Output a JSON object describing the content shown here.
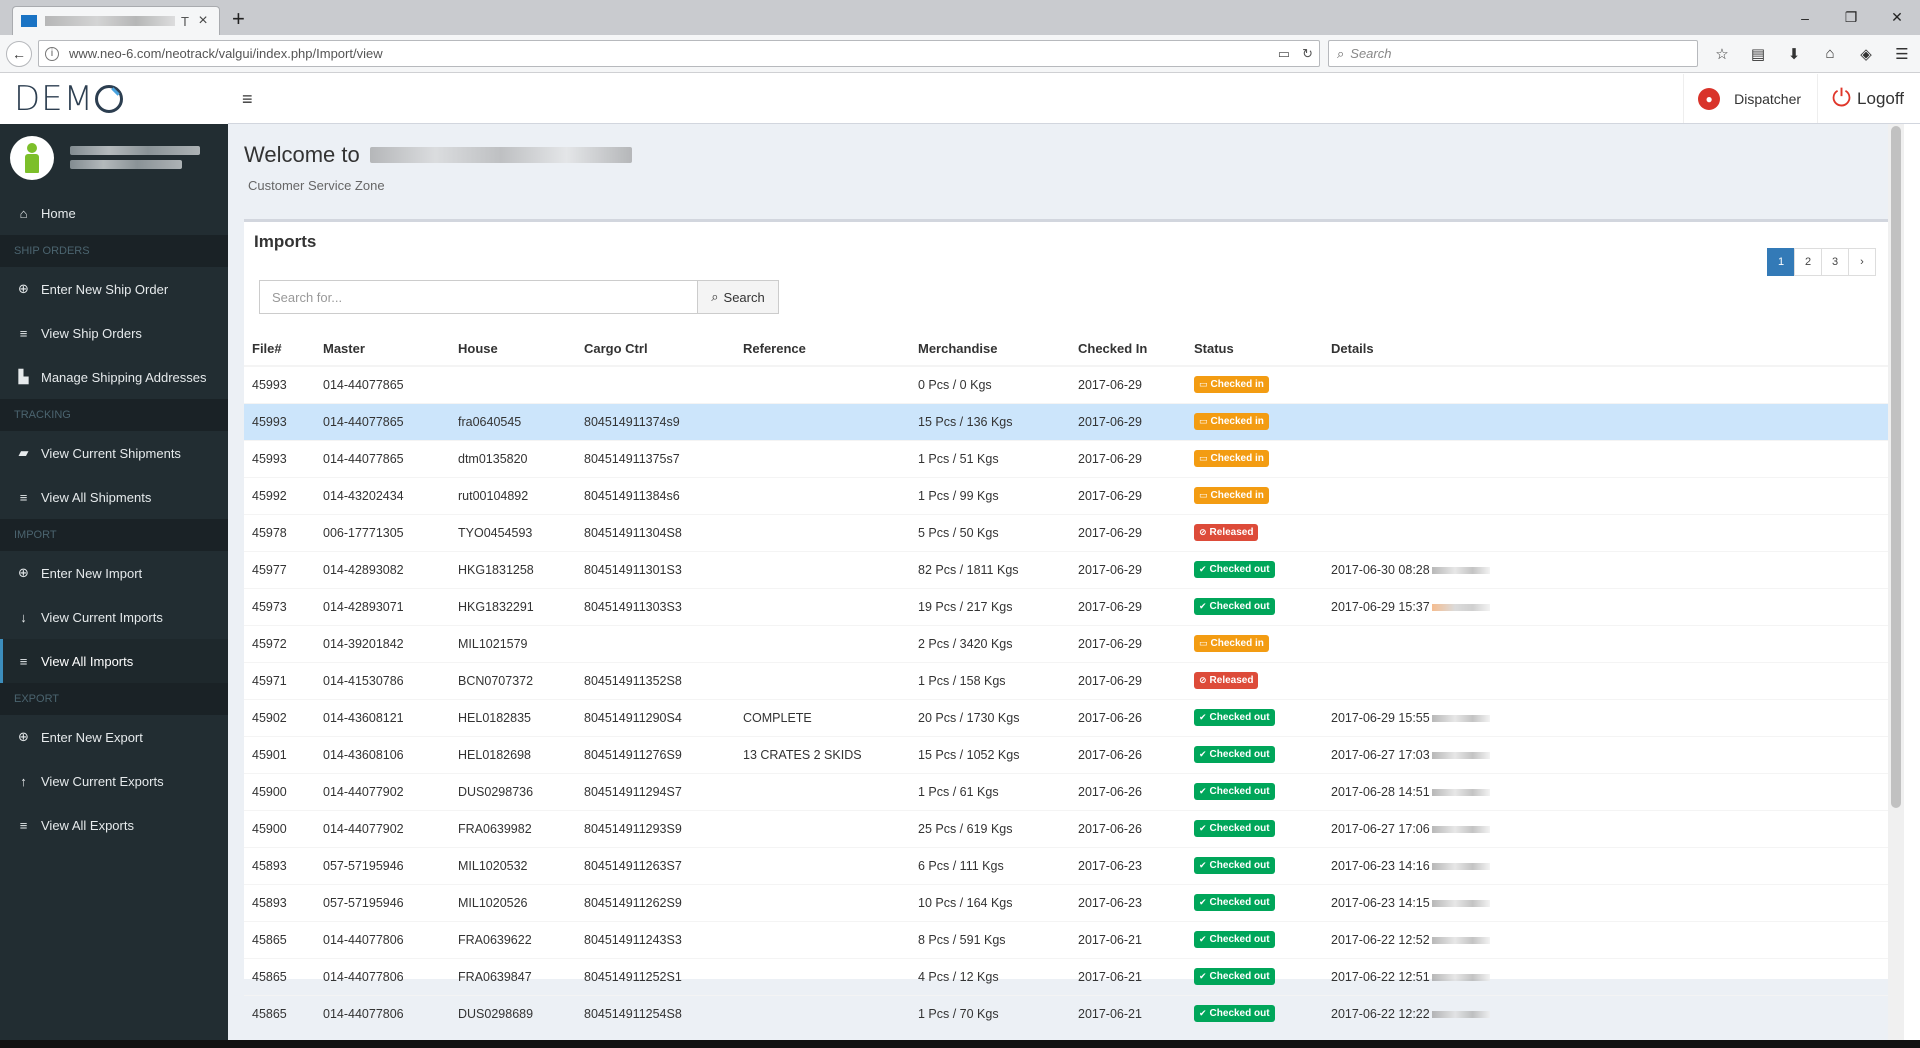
{
  "browser": {
    "tab_title": "T",
    "address": "www.neo-6.com/neotrack/valgui/index.php/Import/view",
    "search_placeholder": "Search"
  },
  "app": {
    "logo": "DEMO",
    "topbar": {
      "dispatcher_label": "Dispatcher",
      "logoff_label": "Logoff"
    },
    "sidebar": {
      "items": [
        {
          "type": "item",
          "label": "Home",
          "icon": "home-icon",
          "glyph": "⌂"
        },
        {
          "type": "header",
          "label": "SHIP ORDERS"
        },
        {
          "type": "item",
          "label": "Enter New Ship Order",
          "icon": "plus-circle-icon",
          "glyph": "⊕"
        },
        {
          "type": "item",
          "label": "View Ship Orders",
          "icon": "list-icon",
          "glyph": "≡"
        },
        {
          "type": "item",
          "label": "Manage Shipping Addresses",
          "icon": "chart-icon",
          "glyph": "▙"
        },
        {
          "type": "header",
          "label": "TRACKING"
        },
        {
          "type": "item",
          "label": "View Current Shipments",
          "icon": "truck-icon",
          "glyph": "▰"
        },
        {
          "type": "item",
          "label": "View All Shipments",
          "icon": "list-icon",
          "glyph": "≡"
        },
        {
          "type": "header",
          "label": "IMPORT"
        },
        {
          "type": "item",
          "label": "Enter New Import",
          "icon": "plus-circle-icon",
          "glyph": "⊕"
        },
        {
          "type": "item",
          "label": "View Current Imports",
          "icon": "arrow-down-icon",
          "glyph": "↓"
        },
        {
          "type": "item",
          "label": "View All Imports",
          "icon": "list-icon",
          "glyph": "≡",
          "active": true
        },
        {
          "type": "header",
          "label": "EXPORT"
        },
        {
          "type": "item",
          "label": "Enter New Export",
          "icon": "plus-circle-icon",
          "glyph": "⊕"
        },
        {
          "type": "item",
          "label": "View Current Exports",
          "icon": "arrow-up-icon",
          "glyph": "↑"
        },
        {
          "type": "item",
          "label": "View All Exports",
          "icon": "list-icon",
          "glyph": "≡"
        }
      ]
    },
    "content": {
      "welcome": "Welcome to",
      "subtitle": "Customer Service Zone",
      "box_title": "Imports",
      "search_placeholder": "Search for...",
      "search_button": "Search",
      "pagination": [
        "1",
        "2",
        "3",
        "›"
      ],
      "active_page": "1",
      "columns": [
        "File#",
        "Master",
        "House",
        "Cargo Ctrl",
        "Reference",
        "Merchandise",
        "Checked In",
        "Status",
        "Details"
      ],
      "rows": [
        {
          "file": "45993",
          "master": "014-44077865",
          "house": "",
          "cargo": "",
          "ref": "",
          "merch": "0 Pcs / 0 Kgs",
          "checked_in": "2017-06-29",
          "status": "Checked in",
          "details": ""
        },
        {
          "file": "45993",
          "master": "014-44077865",
          "house": "fra0640545",
          "cargo": "804514911374s9",
          "ref": "",
          "merch": "15 Pcs / 136 Kgs",
          "checked_in": "2017-06-29",
          "status": "Checked in",
          "details": "",
          "highlight": true
        },
        {
          "file": "45993",
          "master": "014-44077865",
          "house": "dtm0135820",
          "cargo": "804514911375s7",
          "ref": "",
          "merch": "1 Pcs / 51 Kgs",
          "checked_in": "2017-06-29",
          "status": "Checked in",
          "details": ""
        },
        {
          "file": "45992",
          "master": "014-43202434",
          "house": "rut00104892",
          "cargo": "804514911384s6",
          "ref": "",
          "merch": "1 Pcs / 99 Kgs",
          "checked_in": "2017-06-29",
          "status": "Checked in",
          "details": ""
        },
        {
          "file": "45978",
          "master": "006-17771305",
          "house": "TYO0454593",
          "cargo": "804514911304S8",
          "ref": "",
          "merch": "5 Pcs / 50 Kgs",
          "checked_in": "2017-06-29",
          "status": "Released",
          "details": ""
        },
        {
          "file": "45977",
          "master": "014-42893082",
          "house": "HKG1831258",
          "cargo": "804514911301S3",
          "ref": "",
          "merch": "82 Pcs / 1811 Kgs",
          "checked_in": "2017-06-29",
          "status": "Checked out",
          "details": "2017-06-30 08:28"
        },
        {
          "file": "45973",
          "master": "014-42893071",
          "house": "HKG1832291",
          "cargo": "804514911303S3",
          "ref": "",
          "merch": "19 Pcs / 217 Kgs",
          "checked_in": "2017-06-29",
          "status": "Checked out",
          "details": "2017-06-29 15:37"
        },
        {
          "file": "45972",
          "master": "014-39201842",
          "house": "MIL1021579",
          "cargo": "",
          "ref": "",
          "merch": "2 Pcs / 3420 Kgs",
          "checked_in": "2017-06-29",
          "status": "Checked in",
          "details": ""
        },
        {
          "file": "45971",
          "master": "014-41530786",
          "house": "BCN0707372",
          "cargo": "804514911352S8",
          "ref": "",
          "merch": "1 Pcs / 158 Kgs",
          "checked_in": "2017-06-29",
          "status": "Released",
          "details": ""
        },
        {
          "file": "45902",
          "master": "014-43608121",
          "house": "HEL0182835",
          "cargo": "804514911290S4",
          "ref": "COMPLETE",
          "merch": "20 Pcs / 1730 Kgs",
          "checked_in": "2017-06-26",
          "status": "Checked out",
          "details": "2017-06-29 15:55"
        },
        {
          "file": "45901",
          "master": "014-43608106",
          "house": "HEL0182698",
          "cargo": "804514911276S9",
          "ref": "13 CRATES 2 SKIDS",
          "merch": "15 Pcs / 1052 Kgs",
          "checked_in": "2017-06-26",
          "status": "Checked out",
          "details": "2017-06-27 17:03"
        },
        {
          "file": "45900",
          "master": "014-44077902",
          "house": "DUS0298736",
          "cargo": "804514911294S7",
          "ref": "",
          "merch": "1 Pcs / 61 Kgs",
          "checked_in": "2017-06-26",
          "status": "Checked out",
          "details": "2017-06-28 14:51"
        },
        {
          "file": "45900",
          "master": "014-44077902",
          "house": "FRA0639982",
          "cargo": "804514911293S9",
          "ref": "",
          "merch": "25 Pcs / 619 Kgs",
          "checked_in": "2017-06-26",
          "status": "Checked out",
          "details": "2017-06-27 17:06"
        },
        {
          "file": "45893",
          "master": "057-57195946",
          "house": "MIL1020532",
          "cargo": "804514911263S7",
          "ref": "",
          "merch": "6 Pcs / 111 Kgs",
          "checked_in": "2017-06-23",
          "status": "Checked out",
          "details": "2017-06-23 14:16"
        },
        {
          "file": "45893",
          "master": "057-57195946",
          "house": "MIL1020526",
          "cargo": "804514911262S9",
          "ref": "",
          "merch": "10 Pcs / 164 Kgs",
          "checked_in": "2017-06-23",
          "status": "Checked out",
          "details": "2017-06-23 14:15"
        },
        {
          "file": "45865",
          "master": "014-44077806",
          "house": "FRA0639622",
          "cargo": "804514911243S3",
          "ref": "",
          "merch": "8 Pcs / 591 Kgs",
          "checked_in": "2017-06-21",
          "status": "Checked out",
          "details": "2017-06-22 12:52"
        },
        {
          "file": "45865",
          "master": "014-44077806",
          "house": "FRA0639847",
          "cargo": "804514911252S1",
          "ref": "",
          "merch": "4 Pcs / 12 Kgs",
          "checked_in": "2017-06-21",
          "status": "Checked out",
          "details": "2017-06-22 12:51"
        },
        {
          "file": "45865",
          "master": "014-44077806",
          "house": "DUS0298689",
          "cargo": "804514911254S8",
          "ref": "",
          "merch": "1 Pcs / 70 Kgs",
          "checked_in": "2017-06-21",
          "status": "Checked out",
          "details": "2017-06-22 12:22"
        }
      ]
    }
  },
  "colors": {
    "sidebar_bg": "#222d32",
    "checked_in": "#f39c12",
    "released": "#dd4b39",
    "checked_out": "#00a65a",
    "active_page": "#337ab7",
    "row_highlight": "#cce5fb"
  }
}
